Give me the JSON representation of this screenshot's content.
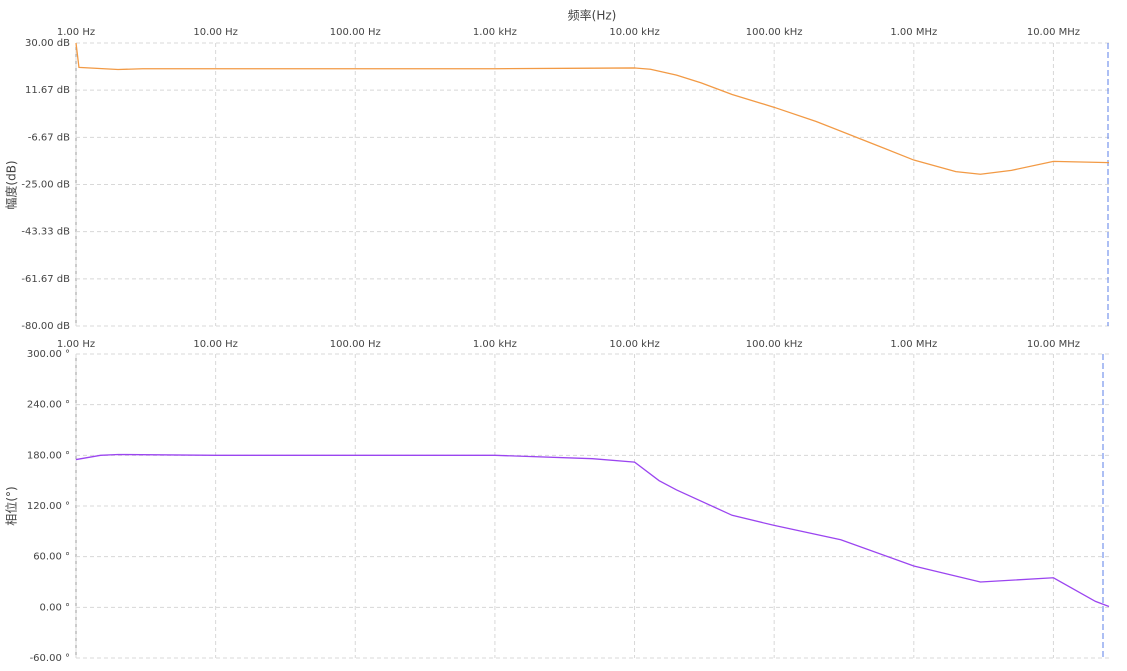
{
  "chart_data": [
    {
      "type": "line",
      "title": "频率(Hz)",
      "y_label": "幅度(dB)",
      "xscale": "log",
      "grid": true,
      "color": "#f29a45",
      "xlim": [
        1,
        25000000
      ],
      "ylim": [
        -80,
        30
      ],
      "xticks": [
        {
          "value": 1,
          "label": "1.00 Hz"
        },
        {
          "value": 10,
          "label": "10.00 Hz"
        },
        {
          "value": 100,
          "label": "100.00 Hz"
        },
        {
          "value": 1000,
          "label": "1.00 kHz"
        },
        {
          "value": 10000,
          "label": "10.00 kHz"
        },
        {
          "value": 100000,
          "label": "100.00 kHz"
        },
        {
          "value": 1000000,
          "label": "1.00 MHz"
        },
        {
          "value": 10000000,
          "label": "10.00 MHz"
        }
      ],
      "yticks": [
        {
          "value": 30,
          "label": "30.00 dB"
        },
        {
          "value": 11.67,
          "label": "11.67 dB"
        },
        {
          "value": -6.67,
          "label": "-6.67 dB"
        },
        {
          "value": -25,
          "label": "-25.00 dB"
        },
        {
          "value": -43.33,
          "label": "-43.33 dB"
        },
        {
          "value": -61.67,
          "label": "-61.67 dB"
        },
        {
          "value": -80,
          "label": "-80.00 dB"
        }
      ],
      "x": [
        1,
        1.05,
        2,
        3,
        10,
        100,
        1000,
        5000,
        10000,
        13000,
        20000,
        30000,
        50000,
        100000,
        200000,
        500000,
        1000000,
        2000000,
        3000000,
        5000000,
        10000000,
        25000000
      ],
      "values": [
        30,
        20.5,
        19.7,
        20,
        20,
        20,
        20,
        20.2,
        20.3,
        19.8,
        17.5,
        14.5,
        10,
        5,
        -0.5,
        -9,
        -15.5,
        -20,
        -21,
        -19.5,
        -16,
        -16.5
      ]
    },
    {
      "type": "line",
      "y_label": "相位(°)",
      "xscale": "log",
      "grid": true,
      "color": "#9b45f0",
      "xlim": [
        1,
        25000000
      ],
      "ylim": [
        -60,
        300
      ],
      "xticks": [
        {
          "value": 1,
          "label": "1.00 Hz"
        },
        {
          "value": 10,
          "label": "10.00 Hz"
        },
        {
          "value": 100,
          "label": "100.00 Hz"
        },
        {
          "value": 1000,
          "label": "1.00 kHz"
        },
        {
          "value": 10000,
          "label": "10.00 kHz"
        },
        {
          "value": 100000,
          "label": "100.00 kHz"
        },
        {
          "value": 1000000,
          "label": "1.00 MHz"
        },
        {
          "value": 10000000,
          "label": "10.00 MHz"
        }
      ],
      "yticks": [
        {
          "value": 300,
          "label": "300.00 °"
        },
        {
          "value": 240,
          "label": "240.00 °"
        },
        {
          "value": 180,
          "label": "180.00 °"
        },
        {
          "value": 120,
          "label": "120.00 °"
        },
        {
          "value": 60,
          "label": "60.00 °"
        },
        {
          "value": 0,
          "label": "0.00 °"
        },
        {
          "value": -60,
          "label": "-60.00 °"
        }
      ],
      "x": [
        1,
        1.5,
        2,
        10,
        100,
        1000,
        5000,
        10000,
        15000,
        20000,
        50000,
        100000,
        300000,
        1000000,
        3000000,
        10000000,
        20000000,
        25000000
      ],
      "values": [
        175,
        180,
        181,
        180,
        180,
        180,
        176,
        172,
        150,
        139,
        109,
        97,
        80,
        49,
        30,
        35,
        7,
        1
      ]
    }
  ]
}
